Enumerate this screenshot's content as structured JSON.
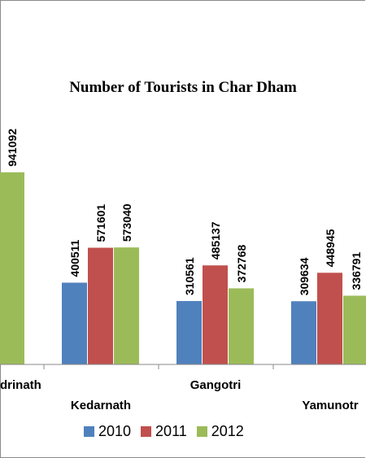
{
  "chart_data": {
    "type": "bar",
    "title": "Number of Tourists in Char Dham",
    "categories": [
      "Badrinath",
      "Kedarnath",
      "Gangotri",
      "Yamunotri"
    ],
    "category_labels_visible": [
      "drinath",
      "Kedarnath",
      "Gangotri",
      "Yamunotr"
    ],
    "series": [
      {
        "name": "2010",
        "color": "#4f81bd",
        "values": [
          null,
          400511,
          310561,
          309634
        ]
      },
      {
        "name": "2011",
        "color": "#c0504d",
        "values": [
          null,
          571601,
          485137,
          448945
        ]
      },
      {
        "name": "2012",
        "color": "#9bbb59",
        "values": [
          941092,
          573040,
          372768,
          336791
        ]
      }
    ],
    "xlabel": "",
    "ylabel": "",
    "ylim": [
      0,
      1200000
    ],
    "grid": false,
    "legend": "bottom"
  }
}
